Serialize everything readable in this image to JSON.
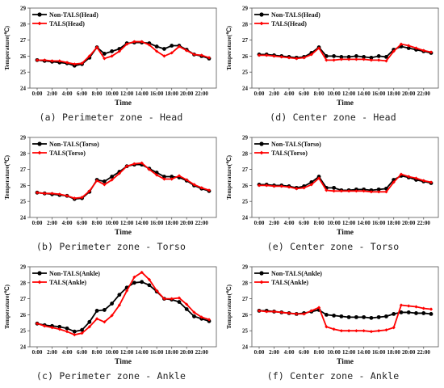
{
  "chart_data": [
    {
      "type": "line",
      "caption": "(a) Perimeter zone - Head",
      "xlabel": "Time",
      "ylabel": "Temperature(℃)",
      "ylim": [
        24,
        29
      ],
      "yticks": [
        "24",
        "25",
        "26",
        "27",
        "28",
        "29"
      ],
      "xticks": [
        "0:00",
        "2:00",
        "4:00",
        "6:00",
        "8:00",
        "10:00",
        "12:00",
        "14:00",
        "16:00",
        "18:00",
        "20:00",
        "22:00"
      ],
      "colors": [
        "#000000",
        "#ff0000"
      ],
      "series": [
        {
          "name": "Non-TALS(Head)",
          "values": [
            25.75,
            25.7,
            25.65,
            25.6,
            25.55,
            25.4,
            25.5,
            25.9,
            26.55,
            26.15,
            26.3,
            26.45,
            26.8,
            26.85,
            26.85,
            26.8,
            26.6,
            26.45,
            26.65,
            26.65,
            26.4,
            26.1,
            26.0,
            25.85
          ]
        },
        {
          "name": "TALS(Head)",
          "values": [
            25.75,
            25.75,
            25.7,
            25.7,
            25.6,
            25.5,
            25.55,
            26.0,
            26.55,
            25.85,
            26.0,
            26.3,
            26.75,
            26.9,
            26.9,
            26.7,
            26.3,
            26.0,
            26.2,
            26.6,
            26.35,
            26.1,
            26.05,
            25.9
          ]
        }
      ]
    },
    {
      "type": "line",
      "caption": "(d) Center zone - Head",
      "xlabel": "Time",
      "ylabel": "Temperature(℃)",
      "ylim": [
        24,
        29
      ],
      "yticks": [
        "24",
        "25",
        "26",
        "27",
        "28",
        "29"
      ],
      "xticks": [
        "0:00",
        "2:00",
        "4:00",
        "6:00",
        "8:00",
        "10:00",
        "12:00",
        "14:00",
        "16:00",
        "18:00",
        "20:00",
        "22:00"
      ],
      "colors": [
        "#000000",
        "#ff0000"
      ],
      "series": [
        {
          "name": "Non-TALS(Head)",
          "values": [
            26.1,
            26.1,
            26.05,
            26.0,
            25.95,
            25.9,
            25.95,
            26.2,
            26.55,
            26.0,
            26.0,
            25.95,
            25.95,
            26.0,
            25.95,
            25.9,
            26.0,
            25.95,
            26.4,
            26.6,
            26.5,
            26.4,
            26.3,
            26.2
          ]
        },
        {
          "name": "TALS(Head)",
          "values": [
            26.05,
            26.05,
            26.0,
            25.95,
            25.9,
            25.85,
            25.9,
            26.1,
            26.5,
            25.75,
            25.75,
            25.8,
            25.8,
            25.8,
            25.8,
            25.75,
            25.75,
            25.7,
            26.3,
            26.75,
            26.65,
            26.5,
            26.35,
            26.25
          ]
        }
      ]
    },
    {
      "type": "line",
      "caption": "(b) Perimeter zone - Torso",
      "xlabel": "Time",
      "ylabel": "Temperature(℃)",
      "ylim": [
        24,
        29
      ],
      "yticks": [
        "24",
        "25",
        "26",
        "27",
        "28",
        "29"
      ],
      "xticks": [
        "0:00",
        "2:00",
        "4:00",
        "6:00",
        "8:00",
        "10:00",
        "12:00",
        "14:00",
        "16:00",
        "18:00",
        "20:00",
        "22:00"
      ],
      "colors": [
        "#000000",
        "#ff0000"
      ],
      "series": [
        {
          "name": "Non-TALS(Torso)",
          "values": [
            25.55,
            25.5,
            25.45,
            25.4,
            25.35,
            25.15,
            25.2,
            25.6,
            26.35,
            26.25,
            26.55,
            26.85,
            27.2,
            27.3,
            27.3,
            27.05,
            26.8,
            26.55,
            26.55,
            26.5,
            26.3,
            26.0,
            25.8,
            25.65
          ]
        },
        {
          "name": "TALS(Torso)",
          "values": [
            25.55,
            25.5,
            25.5,
            25.45,
            25.35,
            25.2,
            25.25,
            25.65,
            26.3,
            26.05,
            26.35,
            26.75,
            27.2,
            27.35,
            27.4,
            27.0,
            26.65,
            26.4,
            26.4,
            26.6,
            26.35,
            26.05,
            25.85,
            25.7
          ]
        }
      ]
    },
    {
      "type": "line",
      "caption": "(e) Center zone - Torso",
      "xlabel": "Time",
      "ylabel": "Temperature(℃)",
      "ylim": [
        24,
        29
      ],
      "yticks": [
        "24",
        "25",
        "26",
        "27",
        "28",
        "29"
      ],
      "xticks": [
        "0:00",
        "2:00",
        "4:00",
        "6:00",
        "8:00",
        "10:00",
        "12:00",
        "14:00",
        "16:00",
        "18:00",
        "20:00",
        "22:00"
      ],
      "colors": [
        "#000000",
        "#ff0000"
      ],
      "series": [
        {
          "name": "Non-TALS(Torso)",
          "values": [
            26.05,
            26.05,
            26.0,
            26.0,
            25.95,
            25.85,
            25.95,
            26.2,
            26.55,
            25.85,
            25.85,
            25.7,
            25.7,
            25.75,
            25.75,
            25.7,
            25.75,
            25.8,
            26.35,
            26.6,
            26.5,
            26.35,
            26.25,
            26.15
          ]
        },
        {
          "name": "TALS(Torso)",
          "values": [
            26.0,
            26.0,
            25.95,
            25.95,
            25.9,
            25.8,
            25.85,
            26.05,
            26.45,
            25.7,
            25.65,
            25.65,
            25.65,
            25.65,
            25.65,
            25.6,
            25.6,
            25.6,
            26.2,
            26.7,
            26.55,
            26.45,
            26.3,
            26.2
          ]
        }
      ]
    },
    {
      "type": "line",
      "caption": "(c) Perimeter zone - Ankle",
      "xlabel": "Time",
      "ylabel": "Temperature(℃)",
      "ylim": [
        24,
        29
      ],
      "yticks": [
        "24",
        "25",
        "26",
        "27",
        "28",
        "29"
      ],
      "xticks": [
        "0:00",
        "2:00",
        "4:00",
        "6:00",
        "8:00",
        "10:00",
        "12:00",
        "14:00",
        "16:00",
        "18:00",
        "20:00",
        "22:00"
      ],
      "colors": [
        "#000000",
        "#ff0000"
      ],
      "series": [
        {
          "name": "Non-TALS(Ankle)",
          "values": [
            25.45,
            25.35,
            25.3,
            25.25,
            25.15,
            24.95,
            25.05,
            25.55,
            26.25,
            26.3,
            26.7,
            27.25,
            27.7,
            28.0,
            28.05,
            27.85,
            27.45,
            27.0,
            26.95,
            26.8,
            26.35,
            25.9,
            25.75,
            25.6
          ]
        },
        {
          "name": "TALS(Ankle)",
          "values": [
            25.45,
            25.3,
            25.2,
            25.1,
            24.95,
            24.75,
            24.85,
            25.25,
            25.75,
            25.55,
            25.95,
            26.6,
            27.5,
            28.35,
            28.65,
            28.2,
            27.5,
            27.0,
            27.0,
            27.05,
            26.65,
            26.15,
            25.85,
            25.7
          ]
        }
      ]
    },
    {
      "type": "line",
      "caption": "(f) Center zone - Ankle",
      "xlabel": "Time",
      "ylabel": "Temperature(℃)",
      "ylim": [
        24,
        29
      ],
      "yticks": [
        "24",
        "25",
        "26",
        "27",
        "28",
        "29"
      ],
      "xticks": [
        "0:00",
        "2:00",
        "4:00",
        "6:00",
        "8:00",
        "10:00",
        "12:00",
        "14:00",
        "16:00",
        "18:00",
        "20:00",
        "22:00"
      ],
      "colors": [
        "#000000",
        "#ff0000"
      ],
      "series": [
        {
          "name": "Non-TALS(Ankle)",
          "values": [
            26.25,
            26.25,
            26.2,
            26.15,
            26.1,
            26.05,
            26.1,
            26.2,
            26.3,
            26.0,
            25.95,
            25.9,
            25.85,
            25.85,
            25.85,
            25.8,
            25.85,
            25.9,
            26.05,
            26.15,
            26.15,
            26.1,
            26.1,
            26.05
          ]
        },
        {
          "name": "TALS(Ankle)",
          "values": [
            26.25,
            26.2,
            26.2,
            26.15,
            26.1,
            26.05,
            26.05,
            26.25,
            26.45,
            25.25,
            25.1,
            25.0,
            25.0,
            25.0,
            25.0,
            24.95,
            25.0,
            25.05,
            25.2,
            26.6,
            26.55,
            26.5,
            26.4,
            26.35
          ]
        }
      ]
    }
  ]
}
